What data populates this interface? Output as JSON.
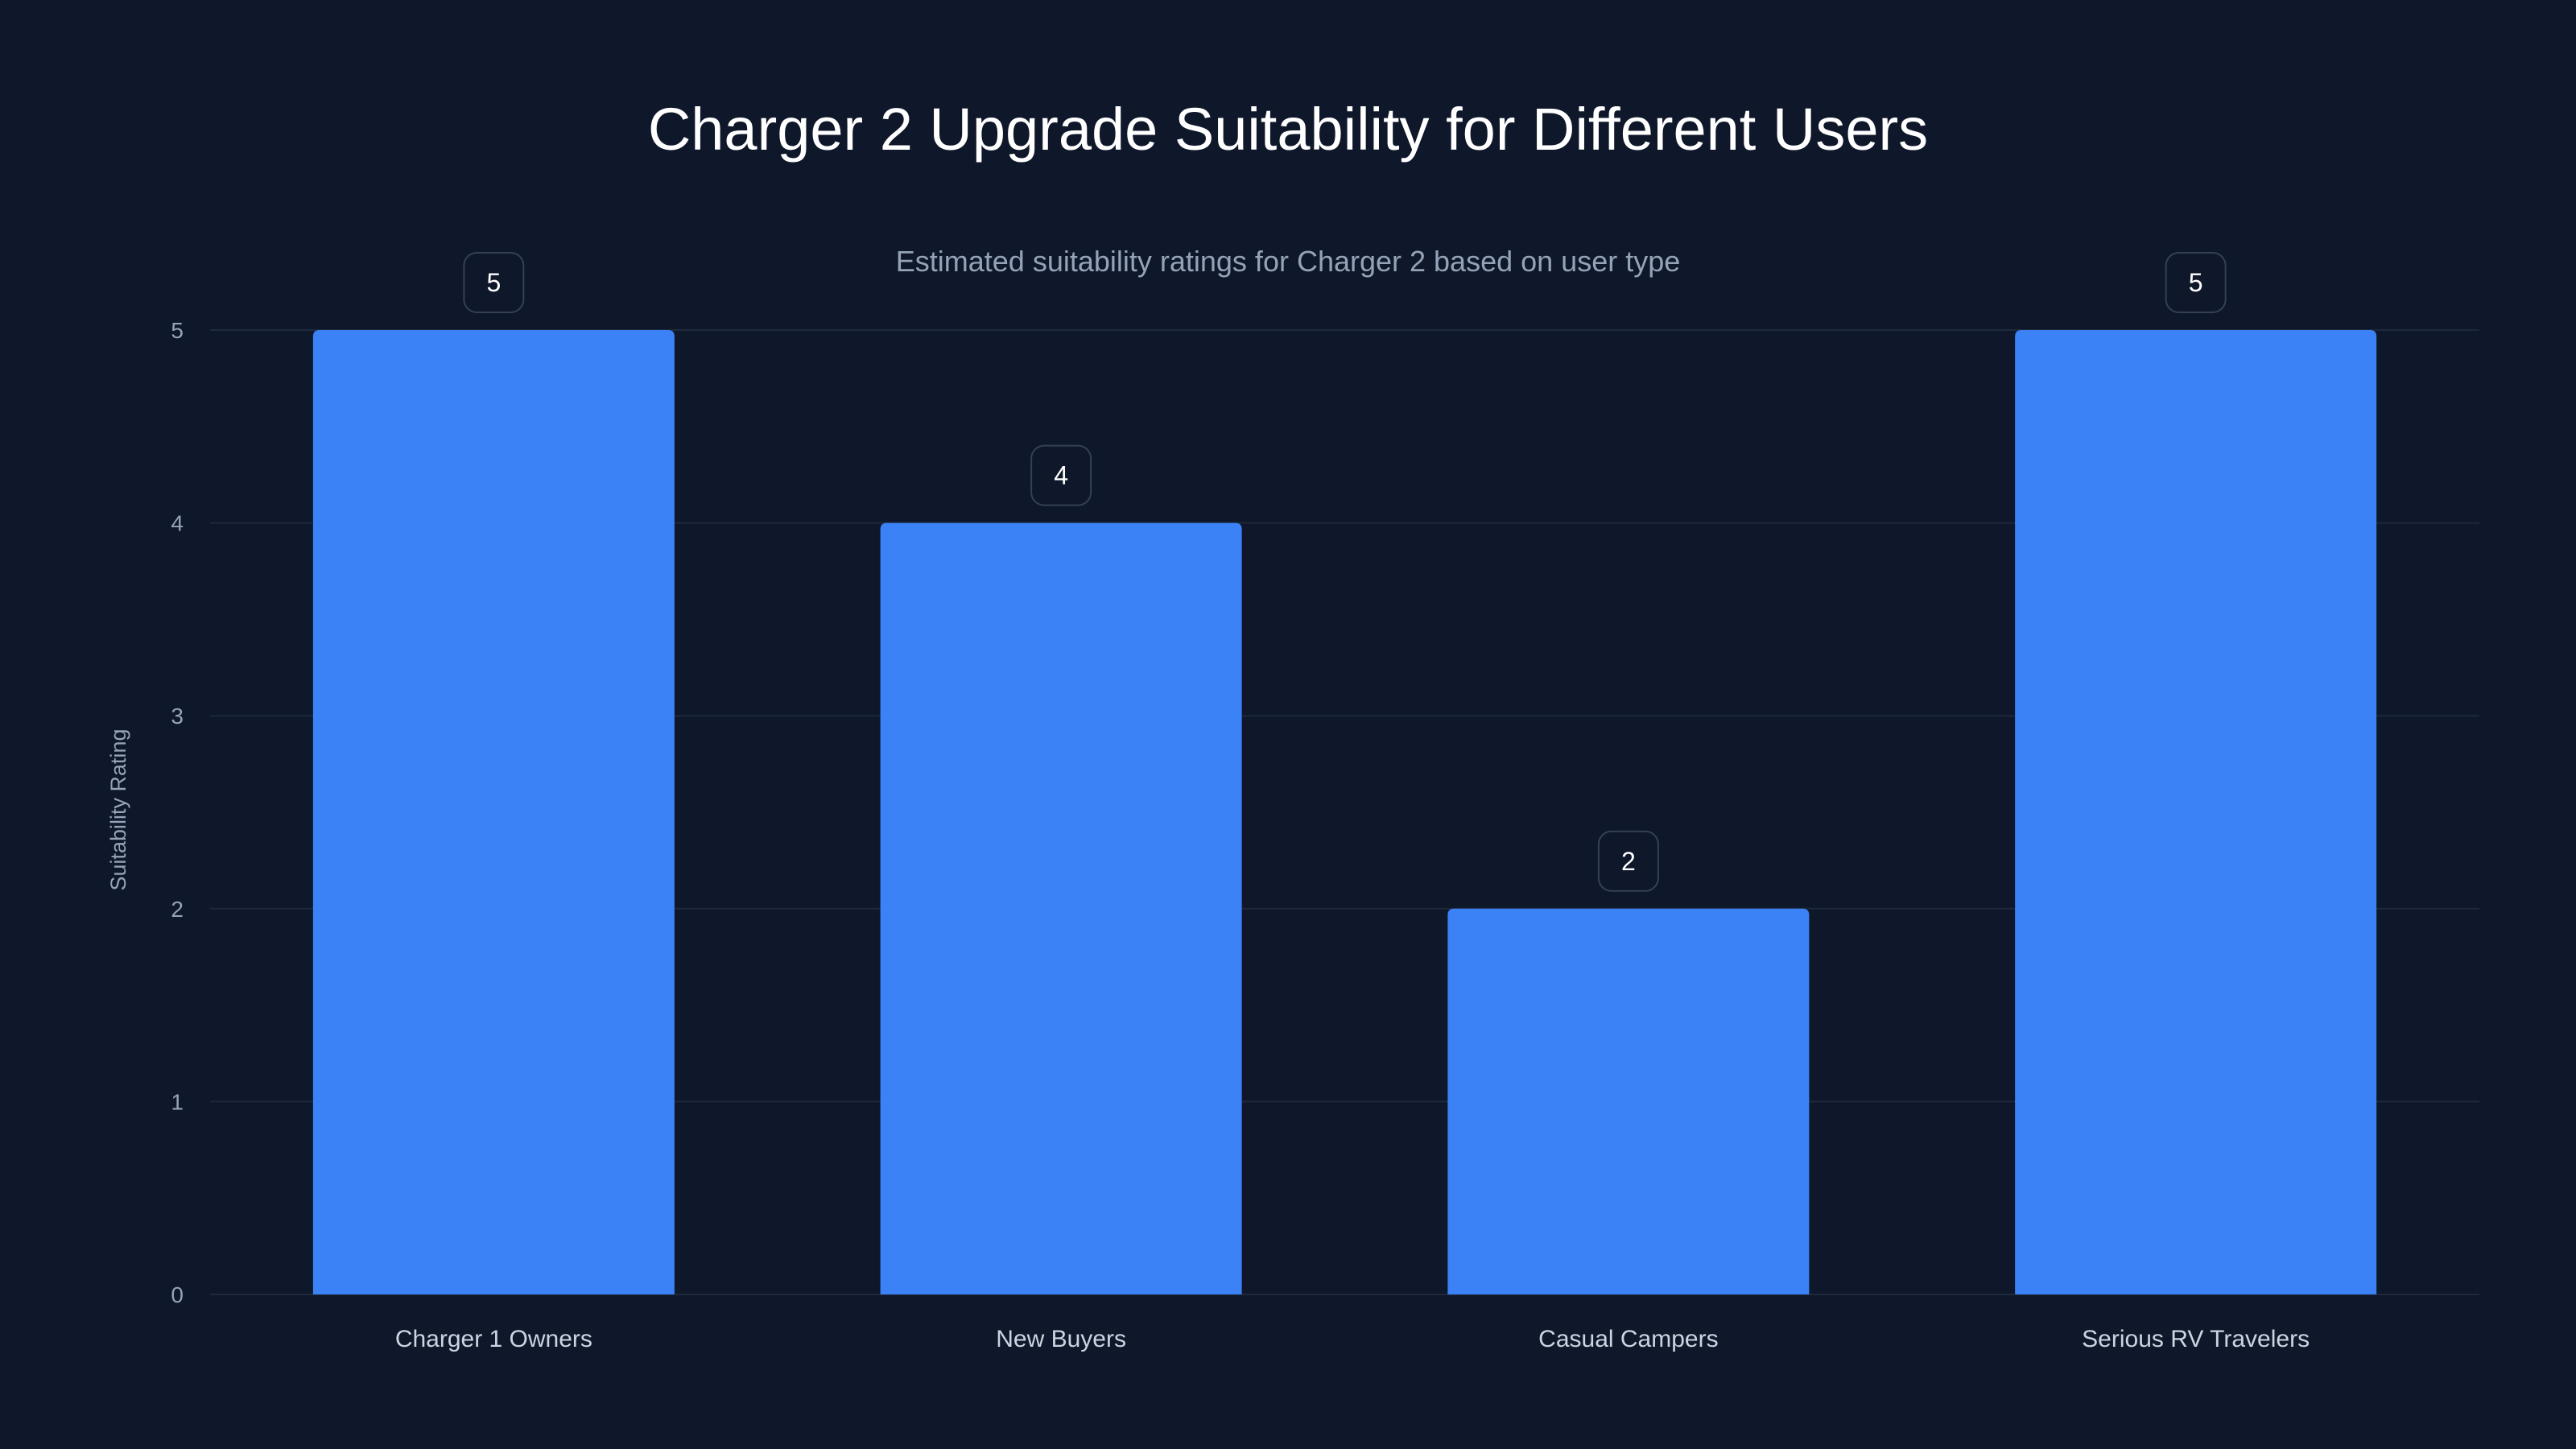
{
  "chart_data": {
    "type": "bar",
    "title": "Charger 2 Upgrade Suitability for Different Users",
    "subtitle": "Estimated suitability ratings for Charger 2 based on user type",
    "xlabel": "",
    "ylabel": "Suitability Rating",
    "categories": [
      "Charger 1 Owners",
      "New Buyers",
      "Casual Campers",
      "Serious RV Travelers"
    ],
    "values": [
      5,
      4,
      2,
      5
    ],
    "ylim": [
      0,
      5
    ],
    "yticks": [
      0,
      1,
      2,
      3,
      4,
      5
    ],
    "grid": true,
    "bar_color": "#3b82f6",
    "background": "#0f172a"
  }
}
